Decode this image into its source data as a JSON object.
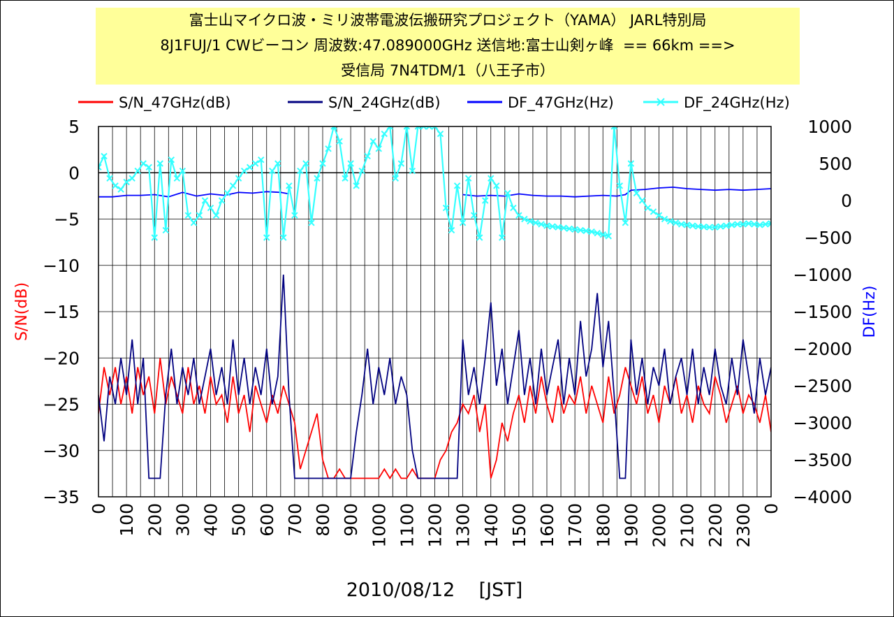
{
  "chart_data": {
    "type": "line",
    "title": [
      "富士山マイクロ波・ミリ波帯電波伝搬研究プロジェクト（YAMA） JARL特別局",
      "8J1FUJ/1 CWビーコン 周波数:47.089000GHz 送信地:富士山剣ヶ峰  == 66km ==>",
      "受信局 7N4TDM/1（八王子市）"
    ],
    "xlabel": "2010/08/12    [JST]",
    "ylabel_left": "S/N(dB)",
    "ylabel_right": "DF(Hz)",
    "left_axis_color": "#ff0000",
    "right_axis_color": "#0000ff",
    "ylim_left": [
      -35,
      5
    ],
    "ylim_right": [
      -4000,
      1000
    ],
    "yticks_left": [
      "5",
      "0",
      "-5",
      "-10",
      "-15",
      "-20",
      "-25",
      "-30",
      "-35"
    ],
    "yticks_right": [
      "1000",
      "500",
      "0",
      "-500",
      "-1000",
      "-1500",
      "-2000",
      "-2500",
      "-3000",
      "-3500",
      "-4000"
    ],
    "xticks": [
      "0",
      "100",
      "200",
      "300",
      "400",
      "500",
      "600",
      "700",
      "800",
      "900",
      "1000",
      "1100",
      "1200",
      "1300",
      "1400",
      "1500",
      "1600",
      "1700",
      "1800",
      "1900",
      "2000",
      "2100",
      "2200",
      "2300",
      "0"
    ],
    "grid": true,
    "legend_position": "top",
    "series": [
      {
        "name": "S/N_47GHz(dB)",
        "axis": "left",
        "color": "#ff0000",
        "marker": "none",
        "x": [
          0,
          20,
          40,
          60,
          80,
          100,
          120,
          140,
          160,
          180,
          200,
          220,
          240,
          260,
          280,
          300,
          320,
          340,
          360,
          380,
          400,
          420,
          440,
          460,
          480,
          500,
          520,
          540,
          560,
          580,
          600,
          620,
          640,
          660,
          680,
          700,
          720,
          740,
          760,
          780,
          800,
          820,
          840,
          860,
          880,
          900,
          920,
          940,
          960,
          980,
          1000,
          1020,
          1040,
          1060,
          1080,
          1100,
          1120,
          1140,
          1160,
          1180,
          1200,
          1220,
          1240,
          1260,
          1280,
          1300,
          1320,
          1340,
          1360,
          1380,
          1400,
          1420,
          1440,
          1460,
          1480,
          1500,
          1520,
          1540,
          1560,
          1580,
          1600,
          1620,
          1640,
          1660,
          1680,
          1700,
          1720,
          1740,
          1760,
          1780,
          1800,
          1820,
          1840,
          1860,
          1880,
          1900,
          1920,
          1940,
          1960,
          1980,
          2000,
          2020,
          2040,
          2060,
          2080,
          2100,
          2120,
          2140,
          2160,
          2180,
          2200,
          2220,
          2240,
          2260,
          2280,
          2300,
          2320,
          2340,
          2360,
          2380,
          2400
        ],
        "y": [
          -26,
          -21,
          -24,
          -21,
          -25,
          -22,
          -26,
          -21,
          -24,
          -22,
          -26,
          -20,
          -25,
          -22,
          -24,
          -26,
          -21,
          -25,
          -23,
          -26,
          -22,
          -25,
          -24,
          -27,
          -22,
          -26,
          -24,
          -28,
          -23,
          -25,
          -27,
          -24,
          -26,
          -23,
          -25,
          -27,
          -32,
          -30,
          -28,
          -26,
          -31,
          -33,
          -33,
          -32,
          -33,
          -33,
          -33,
          -33,
          -33,
          -33,
          -33,
          -32,
          -33,
          -32,
          -33,
          -33,
          -32,
          -33,
          -33,
          -33,
          -33,
          -31,
          -30,
          -28,
          -27,
          -25,
          -26,
          -24,
          -28,
          -25,
          -33,
          -31,
          -27,
          -29,
          -26,
          -24,
          -27,
          -23,
          -26,
          -22,
          -25,
          -27,
          -23,
          -26,
          -24,
          -25,
          -22,
          -26,
          -23,
          -25,
          -27,
          -22,
          -26,
          -24,
          -21,
          -23,
          -25,
          -22,
          -26,
          -24,
          -27,
          -23,
          -25,
          -22,
          -26,
          -24,
          -27,
          -23,
          -25,
          -26,
          -22,
          -24,
          -27,
          -25,
          -23,
          -26,
          -24,
          -25,
          -27,
          -24,
          -28
        ]
      },
      {
        "name": "S/N_24GHz(dB)",
        "axis": "left",
        "color": "#000080",
        "marker": "none",
        "x": [
          0,
          20,
          40,
          60,
          80,
          100,
          120,
          140,
          160,
          180,
          200,
          220,
          240,
          260,
          280,
          300,
          320,
          340,
          360,
          380,
          400,
          420,
          440,
          460,
          480,
          500,
          520,
          540,
          560,
          580,
          600,
          620,
          640,
          660,
          680,
          700,
          720,
          740,
          760,
          780,
          800,
          820,
          840,
          860,
          880,
          900,
          920,
          940,
          960,
          980,
          1000,
          1020,
          1040,
          1060,
          1080,
          1100,
          1120,
          1140,
          1160,
          1180,
          1200,
          1220,
          1240,
          1260,
          1280,
          1300,
          1320,
          1340,
          1360,
          1380,
          1400,
          1420,
          1440,
          1460,
          1480,
          1500,
          1520,
          1540,
          1560,
          1580,
          1600,
          1620,
          1640,
          1660,
          1680,
          1700,
          1720,
          1740,
          1760,
          1780,
          1800,
          1820,
          1840,
          1860,
          1880,
          1900,
          1920,
          1940,
          1960,
          1980,
          2000,
          2020,
          2040,
          2060,
          2080,
          2100,
          2120,
          2140,
          2160,
          2180,
          2200,
          2220,
          2240,
          2260,
          2280,
          2300,
          2320,
          2340,
          2360,
          2380,
          2400
        ],
        "y": [
          -24,
          -29,
          -22,
          -25,
          -20,
          -24,
          -18,
          -25,
          -20,
          -33,
          -33,
          -33,
          -24,
          -19,
          -25,
          -21,
          -24,
          -20,
          -25,
          -22,
          -19,
          -24,
          -21,
          -25,
          -18,
          -24,
          -20,
          -25,
          -21,
          -24,
          -19,
          -25,
          -22,
          -11,
          -24,
          -33,
          -33,
          -33,
          -33,
          -33,
          -33,
          -33,
          -33,
          -33,
          -33,
          -33,
          -28,
          -24,
          -19,
          -25,
          -21,
          -24,
          -20,
          -25,
          -22,
          -24,
          -30,
          -33,
          -33,
          -33,
          -33,
          -33,
          -33,
          -33,
          -33,
          -18,
          -24,
          -21,
          -25,
          -20,
          -14,
          -23,
          -19,
          -25,
          -21,
          -17,
          -24,
          -20,
          -25,
          -19,
          -24,
          -21,
          -18,
          -25,
          -20,
          -24,
          -16,
          -22,
          -19,
          -13,
          -21,
          -16,
          -24,
          -33,
          -33,
          -18,
          -24,
          -20,
          -25,
          -21,
          -23,
          -19,
          -25,
          -22,
          -20,
          -24,
          -19,
          -25,
          -21,
          -24,
          -19,
          -23,
          -25,
          -20,
          -24,
          -18,
          -22,
          -26,
          -20,
          -24,
          -21
        ]
      },
      {
        "name": "DF_47GHz(Hz)",
        "axis": "right",
        "color": "#0000ff",
        "marker": "none",
        "x": [
          0,
          50,
          100,
          150,
          200,
          250,
          300,
          350,
          400,
          450,
          500,
          550,
          600,
          650,
          680,
          1290,
          1300,
          1350,
          1400,
          1450,
          1500,
          1550,
          1600,
          1650,
          1700,
          1750,
          1800,
          1850,
          1880,
          1900,
          1950,
          2000,
          2050,
          2100,
          2150,
          2200,
          2250,
          2300,
          2350,
          2400
        ],
        "y": [
          50,
          50,
          70,
          70,
          80,
          50,
          110,
          60,
          90,
          70,
          110,
          100,
          120,
          110,
          90,
          null,
          80,
          60,
          70,
          60,
          90,
          70,
          60,
          60,
          50,
          60,
          70,
          60,
          80,
          140,
          150,
          170,
          180,
          160,
          150,
          140,
          150,
          140,
          150,
          160
        ]
      },
      {
        "name": "DF_24GHz(Hz)",
        "axis": "right",
        "color": "#33ffff",
        "marker": "x",
        "x": [
          0,
          20,
          40,
          60,
          80,
          100,
          120,
          140,
          160,
          180,
          200,
          220,
          240,
          260,
          280,
          300,
          320,
          340,
          360,
          380,
          400,
          420,
          440,
          460,
          480,
          500,
          520,
          540,
          560,
          580,
          600,
          620,
          640,
          660,
          680,
          700,
          720,
          740,
          760,
          780,
          800,
          820,
          840,
          860,
          880,
          900,
          920,
          940,
          960,
          980,
          1000,
          1020,
          1040,
          1060,
          1080,
          1100,
          1120,
          1140,
          1160,
          1180,
          1200,
          1220,
          1240,
          1260,
          1280,
          1300,
          1320,
          1340,
          1360,
          1380,
          1400,
          1420,
          1440,
          1460,
          1480,
          1500,
          1520,
          1540,
          1560,
          1580,
          1600,
          1620,
          1640,
          1660,
          1680,
          1700,
          1720,
          1740,
          1760,
          1780,
          1800,
          1820,
          1840,
          1860,
          1880,
          1900,
          1920,
          1940,
          1960,
          1980,
          2000,
          2020,
          2040,
          2060,
          2080,
          2100,
          2120,
          2140,
          2160,
          2180,
          2200,
          2220,
          2240,
          2260,
          2280,
          2300,
          2320,
          2340,
          2360,
          2380,
          2400
        ],
        "y": [
          450,
          600,
          300,
          200,
          150,
          250,
          300,
          400,
          500,
          450,
          -500,
          500,
          -400,
          550,
          300,
          400,
          -200,
          -300,
          -200,
          0,
          -100,
          -200,
          0,
          100,
          200,
          300,
          400,
          450,
          500,
          550,
          -500,
          400,
          500,
          -500,
          200,
          -200,
          400,
          500,
          -300,
          300,
          500,
          700,
          1000,
          800,
          300,
          500,
          200,
          400,
          600,
          800,
          700,
          900,
          1000,
          300,
          500,
          1000,
          400,
          1000,
          1000,
          1000,
          1000,
          900,
          -100,
          -400,
          200,
          -300,
          300,
          -200,
          -500,
          0,
          300,
          200,
          -500,
          100,
          -100,
          -200,
          -250,
          -280,
          -300,
          -320,
          -340,
          -350,
          -360,
          -370,
          -380,
          -390,
          -400,
          -410,
          -420,
          -440,
          -460,
          -480,
          1000,
          200,
          -300,
          500,
          100,
          0,
          -100,
          -150,
          -200,
          -250,
          -280,
          -300,
          -320,
          -330,
          -340,
          -350,
          -355,
          -360,
          -360,
          -350,
          -340,
          -330,
          -320,
          -320,
          -310,
          -320,
          -330,
          -320,
          -310
        ]
      }
    ]
  }
}
